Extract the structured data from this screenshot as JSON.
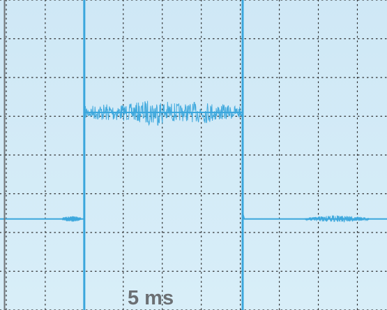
{
  "chart_data": {
    "type": "line",
    "title": "",
    "scale_label": "5 ms",
    "time_per_division": "5 ms",
    "grid": true,
    "colors": {
      "screen_background": "#cfe9f6",
      "trace": "#3aa6dc",
      "cursor": "#3aa6dc",
      "grid": "#2b2b2b",
      "frame": "#6f7478"
    },
    "x_range_ms": [
      -10.8,
      38.8
    ],
    "y_range_divisions": [
      -4,
      4
    ],
    "cursors_ms": [
      0,
      20.3
    ],
    "series": [
      {
        "x": [
          -10.8,
          0,
          0,
          20.3,
          20.3,
          20.5,
          38.8
        ],
        "y": [
          -1.65,
          -1.65,
          1.1,
          1.1,
          -1.5,
          -1.65,
          -1.65
        ]
      }
    ]
  }
}
